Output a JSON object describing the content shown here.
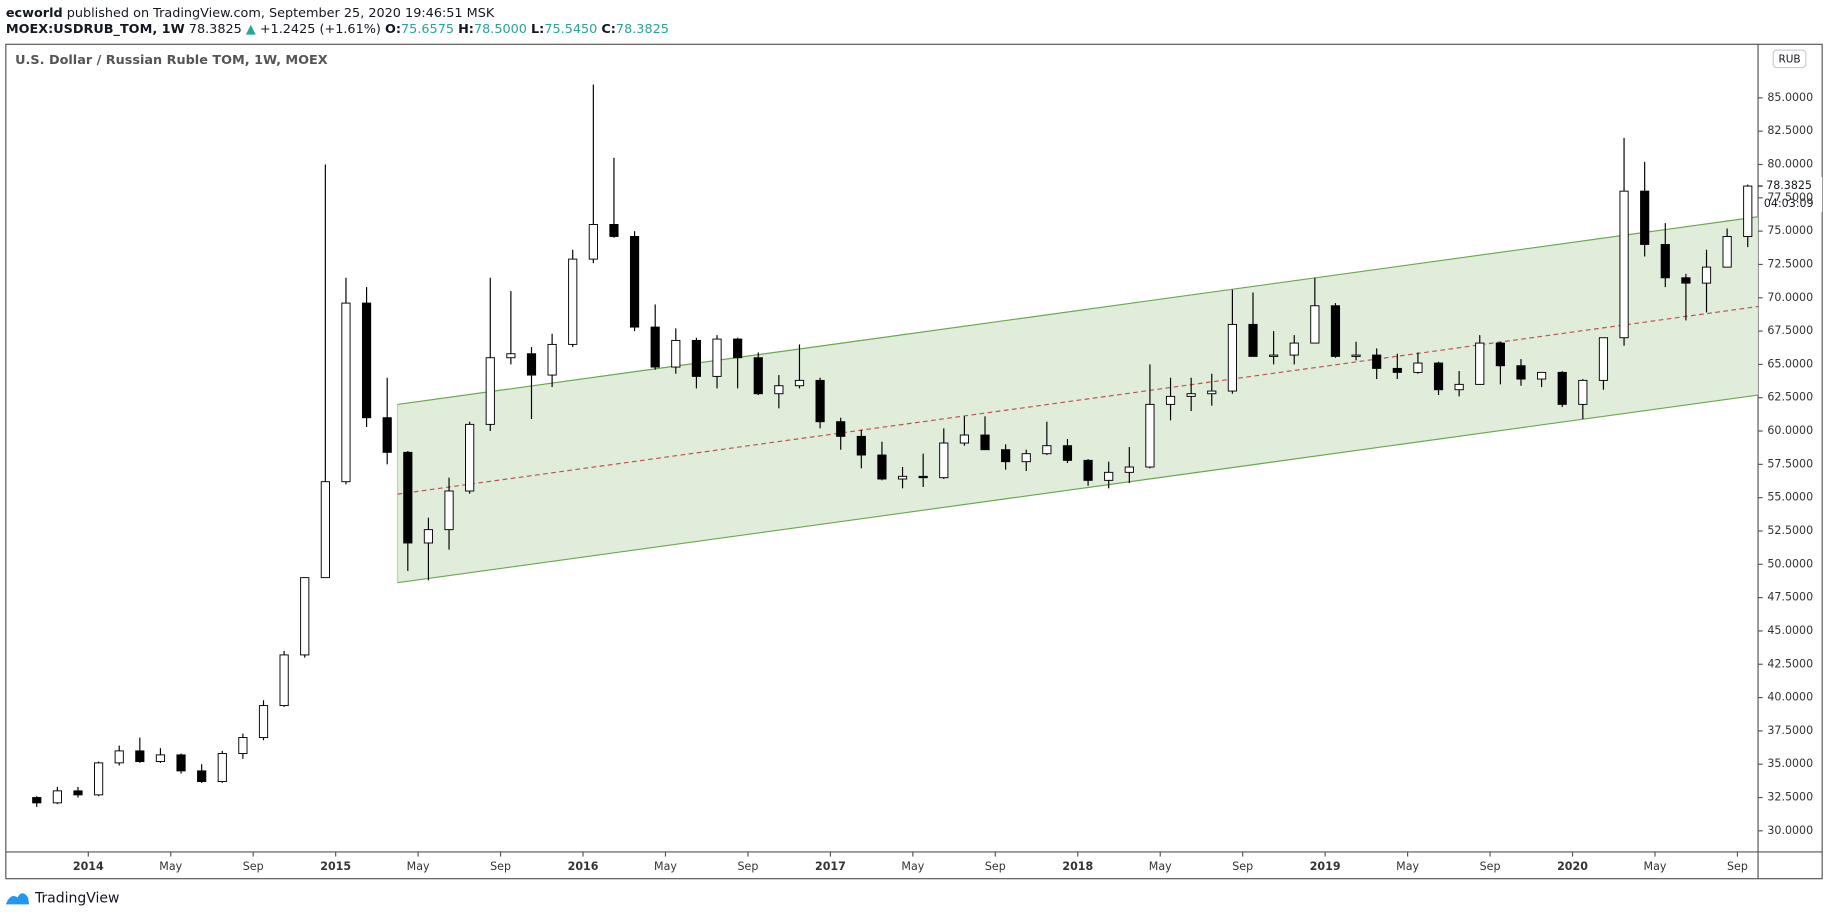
{
  "header": {
    "author": "ecworld",
    "published": "published on TradingView.com, September 25, 2020 19:46:51 MSK",
    "symbol": "MOEX:USDRUB_TOM, 1W",
    "last": "78.3825",
    "arrow": "▲",
    "change": "+1.2425 (+1.61%)",
    "o_label": "O:",
    "o": "75.6575",
    "h_label": "H:",
    "h": "78.5000",
    "l_label": "L:",
    "l": "75.5450",
    "c_label": "C:",
    "c": "78.3825"
  },
  "chart_data": {
    "type": "candlestick",
    "title": "U.S. Dollar / Russian Ruble TOM, 1W, MOEX",
    "currency": "RUB",
    "countdown": "04:03:09",
    "up_color": "#ffffff",
    "down_color": "#000000",
    "border_color": "#000000",
    "x": [
      "2013-10",
      "2013-11",
      "2013-12",
      "2014-01",
      "2014-02",
      "2014-03",
      "2014-04",
      "2014-05",
      "2014-06",
      "2014-07",
      "2014-08",
      "2014-09",
      "2014-10",
      "2014-11",
      "2014-12",
      "2015-01",
      "2015-02",
      "2015-03",
      "2015-04",
      "2015-05",
      "2015-06",
      "2015-07",
      "2015-08",
      "2015-09",
      "2015-10",
      "2015-11",
      "2015-12",
      "2016-01",
      "2016-02",
      "2016-03",
      "2016-04",
      "2016-05",
      "2016-06",
      "2016-07",
      "2016-08",
      "2016-09",
      "2016-10",
      "2016-11",
      "2016-12",
      "2017-01",
      "2017-02",
      "2017-03",
      "2017-04",
      "2017-05",
      "2017-06",
      "2017-07",
      "2017-08",
      "2017-09",
      "2017-10",
      "2017-11",
      "2017-12",
      "2018-01",
      "2018-02",
      "2018-03",
      "2018-04",
      "2018-05",
      "2018-06",
      "2018-07",
      "2018-08",
      "2018-09",
      "2018-10",
      "2018-11",
      "2018-12",
      "2019-01",
      "2019-02",
      "2019-03",
      "2019-04",
      "2019-05",
      "2019-06",
      "2019-07",
      "2019-08",
      "2019-09",
      "2019-10",
      "2019-11",
      "2019-12",
      "2020-01",
      "2020-02",
      "2020-03",
      "2020-04",
      "2020-05",
      "2020-06",
      "2020-07",
      "2020-08",
      "2020-09"
    ],
    "open": [
      32.5,
      32.1,
      33.0,
      32.7,
      35.1,
      36.0,
      35.2,
      35.7,
      34.5,
      33.7,
      35.8,
      37.0,
      39.4,
      43.2,
      49.0,
      56.2,
      69.6,
      61.0,
      58.4,
      51.6,
      52.6,
      55.5,
      60.5,
      65.5,
      65.8,
      64.2,
      66.5,
      72.9,
      75.5,
      74.6,
      67.8,
      64.8,
      66.8,
      64.1,
      66.9,
      65.5,
      62.8,
      63.4,
      63.8,
      60.7,
      59.6,
      58.2,
      56.4,
      56.6,
      56.5,
      59.1,
      59.7,
      58.6,
      57.7,
      58.3,
      58.9,
      57.8,
      56.3,
      56.9,
      57.3,
      62.0,
      62.6,
      62.8,
      63.0,
      68.0,
      65.6,
      65.7,
      66.6,
      69.4,
      65.6,
      65.7,
      64.7,
      64.4,
      65.1,
      63.1,
      63.5,
      66.6,
      64.9,
      63.9,
      64.4,
      62.0,
      63.8,
      67.0,
      78.0,
      74.0,
      71.5,
      71.1,
      72.3,
      74.6
    ],
    "high": [
      32.6,
      33.3,
      33.3,
      35.2,
      36.4,
      37.0,
      36.2,
      35.8,
      35.0,
      36.0,
      37.3,
      39.8,
      43.5,
      49.0,
      80.0,
      71.5,
      70.8,
      64.0,
      58.5,
      53.5,
      56.5,
      60.7,
      71.5,
      70.5,
      66.3,
      67.3,
      73.6,
      86.0,
      80.5,
      75.0,
      69.5,
      67.7,
      67.0,
      67.2,
      67.0,
      65.9,
      64.2,
      66.5,
      64.0,
      61.0,
      60.1,
      59.2,
      57.3,
      58.3,
      60.2,
      61.1,
      61.1,
      59.0,
      58.6,
      60.7,
      59.4,
      57.9,
      57.7,
      58.8,
      65.0,
      64.0,
      64.0,
      64.3,
      70.6,
      70.4,
      67.5,
      67.2,
      71.5,
      69.6,
      66.7,
      66.2,
      65.8,
      65.9,
      65.2,
      64.5,
      67.2,
      66.7,
      65.4,
      64.4,
      64.5,
      63.9,
      67.0,
      82.0,
      80.2,
      75.6,
      71.8,
      73.6,
      75.2,
      78.5
    ],
    "low": [
      31.8,
      32.0,
      32.5,
      32.6,
      34.9,
      35.1,
      35.1,
      34.3,
      33.6,
      33.6,
      35.4,
      36.8,
      39.3,
      43.0,
      49.0,
      56.0,
      60.3,
      57.5,
      49.5,
      48.8,
      51.1,
      55.3,
      60.0,
      65.0,
      60.9,
      63.3,
      66.3,
      72.6,
      74.5,
      67.5,
      64.6,
      64.3,
      63.2,
      63.2,
      63.2,
      62.7,
      61.7,
      63.2,
      60.2,
      58.6,
      57.2,
      56.3,
      55.7,
      55.8,
      56.4,
      58.9,
      58.6,
      57.1,
      57.0,
      58.2,
      57.6,
      55.9,
      55.7,
      56.1,
      57.2,
      60.8,
      61.5,
      61.9,
      62.8,
      65.6,
      65.0,
      65.0,
      66.6,
      65.5,
      65.3,
      63.9,
      63.9,
      64.3,
      62.7,
      62.6,
      63.5,
      63.5,
      63.4,
      63.3,
      61.8,
      60.9,
      63.1,
      66.4,
      73.1,
      70.8,
      68.3,
      68.9,
      72.3,
      73.8
    ],
    "close": [
      32.1,
      33.0,
      32.7,
      35.1,
      36.0,
      35.2,
      35.7,
      34.5,
      33.7,
      35.8,
      37.0,
      39.4,
      43.2,
      49.0,
      56.2,
      69.6,
      61.0,
      58.4,
      51.6,
      52.6,
      55.5,
      60.5,
      65.5,
      65.8,
      64.2,
      66.5,
      72.9,
      75.5,
      74.6,
      67.8,
      64.8,
      66.8,
      64.1,
      66.9,
      65.5,
      62.8,
      63.4,
      63.8,
      60.7,
      59.6,
      58.2,
      56.4,
      56.6,
      56.5,
      59.1,
      59.7,
      58.6,
      57.7,
      58.3,
      58.9,
      57.8,
      56.3,
      56.9,
      57.3,
      62.0,
      62.6,
      62.8,
      63.0,
      68.0,
      65.6,
      65.7,
      66.6,
      69.4,
      65.6,
      65.7,
      64.7,
      64.4,
      65.1,
      63.1,
      63.5,
      66.6,
      64.9,
      63.9,
      64.4,
      62.0,
      63.8,
      67.0,
      78.0,
      74.0,
      71.5,
      71.1,
      72.3,
      74.6,
      78.3825
    ],
    "xlim": [
      "2013-09",
      "2020-10"
    ],
    "xticks": [
      {
        "value": "2014-01",
        "label": "2014"
      },
      {
        "value": "2014-05",
        "label": "May"
      },
      {
        "value": "2014-09",
        "label": "Sep"
      },
      {
        "value": "2015-01",
        "label": "2015"
      },
      {
        "value": "2015-05",
        "label": "May"
      },
      {
        "value": "2015-09",
        "label": "Sep"
      },
      {
        "value": "2016-01",
        "label": "2016"
      },
      {
        "value": "2016-05",
        "label": "May"
      },
      {
        "value": "2016-09",
        "label": "Sep"
      },
      {
        "value": "2017-01",
        "label": "2017"
      },
      {
        "value": "2017-05",
        "label": "May"
      },
      {
        "value": "2017-09",
        "label": "Sep"
      },
      {
        "value": "2018-01",
        "label": "2018"
      },
      {
        "value": "2018-05",
        "label": "May"
      },
      {
        "value": "2018-09",
        "label": "Sep"
      },
      {
        "value": "2019-01",
        "label": "2019"
      },
      {
        "value": "2019-05",
        "label": "May"
      },
      {
        "value": "2019-09",
        "label": "Sep"
      },
      {
        "value": "2020-01",
        "label": "2020"
      },
      {
        "value": "2020-05",
        "label": "May"
      },
      {
        "value": "2020-09",
        "label": "Sep"
      }
    ],
    "ylim": [
      28.42,
      89.02
    ],
    "yticks": [
      {
        "value": 30,
        "label": "30.0000"
      },
      {
        "value": 32.5,
        "label": "32.5000"
      },
      {
        "value": 35,
        "label": "35.0000"
      },
      {
        "value": 37.5,
        "label": "37.5000"
      },
      {
        "value": 40,
        "label": "40.0000"
      },
      {
        "value": 42.5,
        "label": "42.5000"
      },
      {
        "value": 45,
        "label": "45.0000"
      },
      {
        "value": 47.5,
        "label": "47.5000"
      },
      {
        "value": 50,
        "label": "50.0000"
      },
      {
        "value": 52.5,
        "label": "52.5000"
      },
      {
        "value": 55,
        "label": "55.0000"
      },
      {
        "value": 57.5,
        "label": "57.5000"
      },
      {
        "value": 60,
        "label": "60.0000"
      },
      {
        "value": 62.5,
        "label": "62.5000"
      },
      {
        "value": 65,
        "label": "65.0000"
      },
      {
        "value": 67.5,
        "label": "67.5000"
      },
      {
        "value": 70,
        "label": "70.0000"
      },
      {
        "value": 72.5,
        "label": "72.5000"
      },
      {
        "value": 75,
        "label": "75.0000"
      },
      {
        "value": 77.5,
        "label": "77.5000"
      },
      {
        "value": 80,
        "label": "80.0000"
      },
      {
        "value": 82.5,
        "label": "82.5000"
      },
      {
        "value": 85,
        "label": "85.0000"
      }
    ],
    "grid": false
  },
  "footer": {
    "brand": "TradingView"
  }
}
